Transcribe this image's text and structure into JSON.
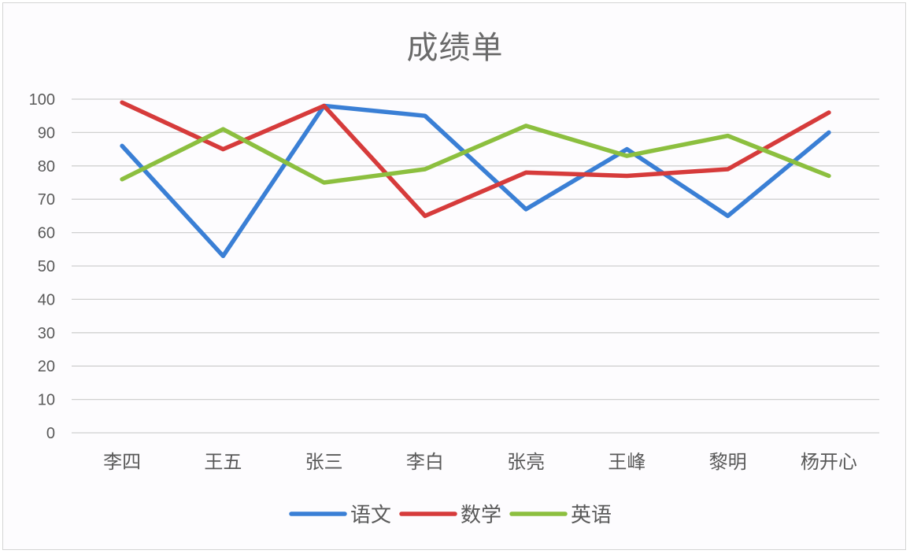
{
  "chart_data": {
    "type": "line",
    "title": "成绩单",
    "xlabel": "",
    "ylabel": "",
    "categories": [
      "李四",
      "王五",
      "张三",
      "李白",
      "张亮",
      "王峰",
      "黎明",
      "杨开心"
    ],
    "series": [
      {
        "name": "语文",
        "color": "#3a7fd5",
        "values": [
          86,
          53,
          98,
          95,
          67,
          85,
          65,
          90
        ]
      },
      {
        "name": "数学",
        "color": "#d63b3b",
        "values": [
          99,
          85,
          98,
          65,
          78,
          77,
          79,
          96
        ]
      },
      {
        "name": "英语",
        "color": "#8cbf3f",
        "values": [
          76,
          91,
          75,
          79,
          92,
          83,
          89,
          77
        ]
      }
    ],
    "ylim": [
      0,
      100
    ],
    "yticks": [
      0,
      10,
      20,
      30,
      40,
      50,
      60,
      70,
      80,
      90,
      100
    ],
    "grid": true,
    "legend_position": "bottom"
  }
}
